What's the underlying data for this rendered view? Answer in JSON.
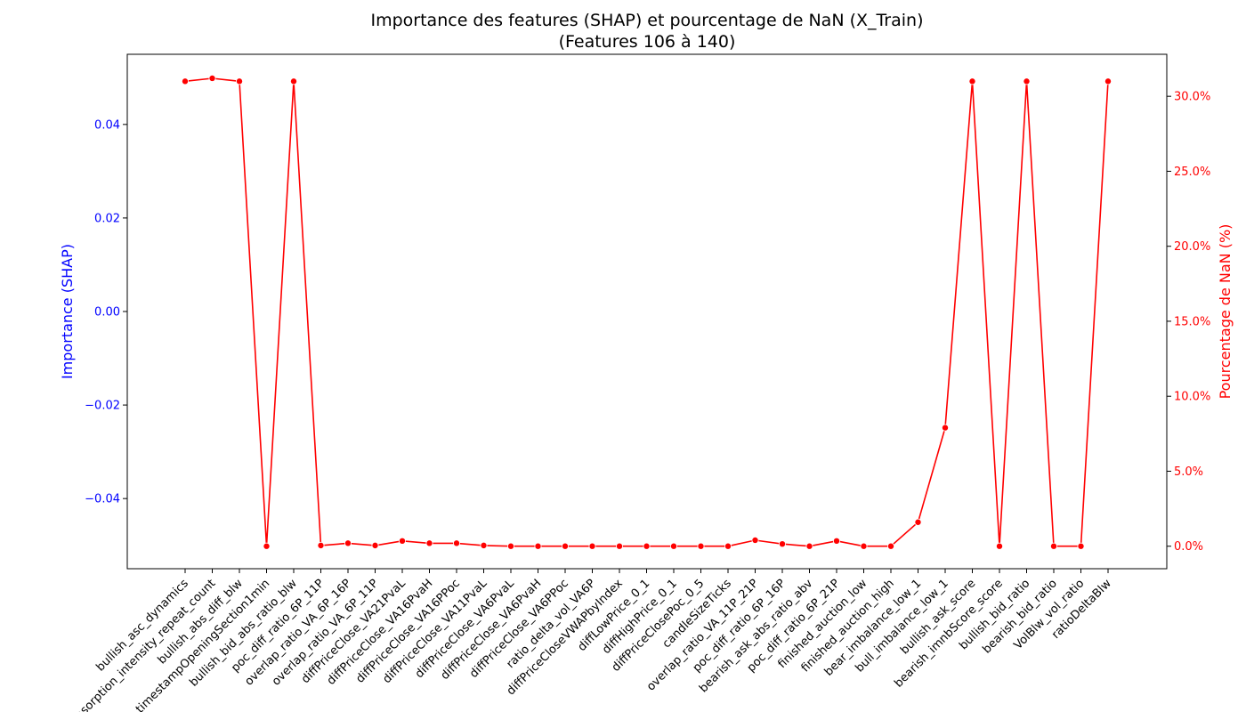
{
  "chart_data": {
    "type": "line",
    "title": "Importance des features (SHAP) et pourcentage de NaN (X_Train)",
    "subtitle": "(Features 106 à 140)",
    "ylabel_left": "Importance (SHAP)",
    "ylabel_right": "Pourcentage de NaN (%)",
    "colors": {
      "left_axis": "#0000ff",
      "right_axis": "#ff0000",
      "series": "#ff0000"
    },
    "left_axis": {
      "range": [
        -0.055,
        0.055
      ],
      "ticks": [
        -0.04,
        -0.02,
        0.0,
        0.02,
        0.04
      ],
      "tick_labels": [
        "−0.04",
        "−0.02",
        "0.00",
        "0.02",
        "0.04"
      ]
    },
    "right_axis": {
      "range": [
        -1.5,
        32.8
      ],
      "ticks": [
        0,
        5,
        10,
        15,
        20,
        25,
        30
      ],
      "tick_labels": [
        "0.0%",
        "5.0%",
        "10.0%",
        "15.0%",
        "20.0%",
        "25.0%",
        "30.0%"
      ]
    },
    "grid": false,
    "categories": [
      "bullish_asc_dynamics",
      "absorption_intensity_repeat_count",
      "bullish_abs_diff_blw",
      "timestampOpeningSection1min",
      "bullish_bid_abs_ratio_blw",
      "poc_diff_ratio_6P_11P",
      "overlap_ratio_VA_6P_16P",
      "overlap_ratio_VA_6P_11P",
      "diffPriceClose_VA21PvaL",
      "diffPriceClose_VA16PvaH",
      "diffPriceClose_VA16PPoc",
      "diffPriceClose_VA11PvaL",
      "diffPriceClose_VA6PvaL",
      "diffPriceClose_VA6PvaH",
      "diffPriceClose_VA6PPoc",
      "ratio_delta_vol_VA6P",
      "diffPriceCloseVWAPbyIndex",
      "diffLowPrice_0_1",
      "diffHighPrice_0_1",
      "diffPriceClosePoc_0_5",
      "candleSizeTicks",
      "overlap_ratio_VA_11P_21P",
      "poc_diff_ratio_6P_16P",
      "bearish_ask_abs_ratio_abv",
      "poc_diff_ratio_6P_21P",
      "finished_auction_low",
      "finished_auction_high",
      "bear_imbalance_low_1",
      "bull_imbalance_low_1",
      "bullish_ask_score",
      "bearish_imnbScore_score",
      "bullish_bid_ratio",
      "bearish_bid_ratio",
      "VolBlw_vol_ratio",
      "ratioDeltaBlw"
    ],
    "series": [
      {
        "values": [
          31.0,
          31.2,
          31.0,
          0.0,
          31.0,
          0.05,
          0.2,
          0.05,
          0.35,
          0.2,
          0.2,
          0.05,
          0.0,
          0.0,
          0.0,
          0.0,
          0.0,
          0.0,
          0.0,
          0.0,
          0.0,
          0.4,
          0.15,
          0.0,
          0.35,
          0.0,
          0.0,
          1.6,
          7.9,
          31.0,
          0.0,
          31.0,
          0.0,
          0.0,
          31.0
        ]
      }
    ]
  }
}
